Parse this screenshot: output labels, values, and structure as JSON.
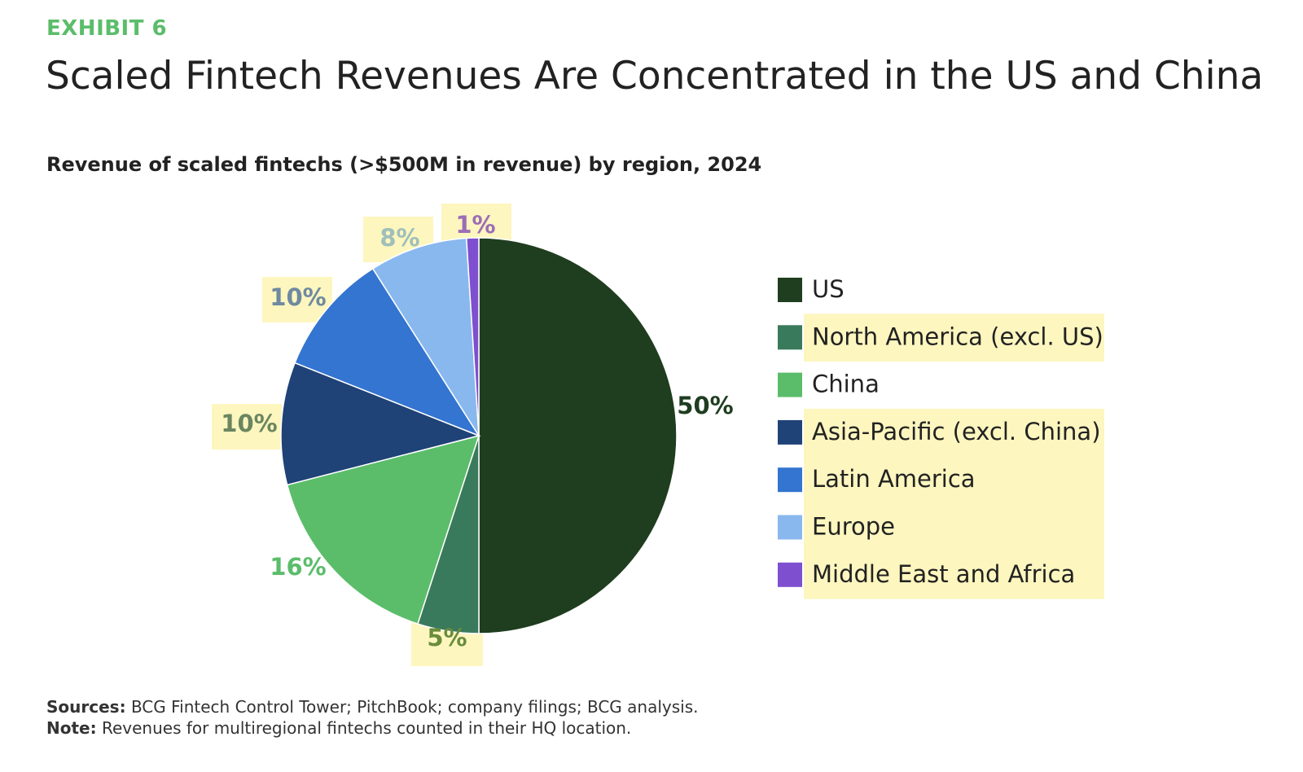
{
  "exhibit_label": "EXHIBIT 6",
  "title": "Scaled Fintech Revenues Are Concentrated in the US and China",
  "chart_data": {
    "type": "pie",
    "title": "Revenue of scaled fintechs (>$500M in revenue) by region, 2024",
    "series": [
      {
        "name": "US",
        "value": 50,
        "label": "50%",
        "color": "#1f3d1f"
      },
      {
        "name": "North America (excl. US)",
        "value": 5,
        "label": "5%",
        "color": "#3a7a5c"
      },
      {
        "name": "China",
        "value": 16,
        "label": "16%",
        "color": "#5bbd6a"
      },
      {
        "name": "Asia-Pacific (excl. China)",
        "value": 10,
        "label": "10%",
        "color": "#1f4277"
      },
      {
        "name": "Latin America",
        "value": 10,
        "label": "10%",
        "color": "#3375d0"
      },
      {
        "name": "Europe",
        "value": 8,
        "label": "8%",
        "color": "#88b8ee"
      },
      {
        "name": "Middle East and Africa",
        "value": 1,
        "label": "1%",
        "color": "#7e4fcf"
      }
    ],
    "legend_position": "right",
    "highlighted_labels": [
      "North America (excl. US)",
      "Asia-Pacific (excl. China)",
      "Latin America",
      "Europe",
      "Middle East and Africa"
    ]
  },
  "footer": {
    "sources_label": "Sources:",
    "sources_text": "BCG Fintech Control Tower; PitchBook; company filings; BCG analysis.",
    "note_label": "Note:",
    "note_text": "Revenues for multiregional fintechs counted in their HQ location."
  }
}
